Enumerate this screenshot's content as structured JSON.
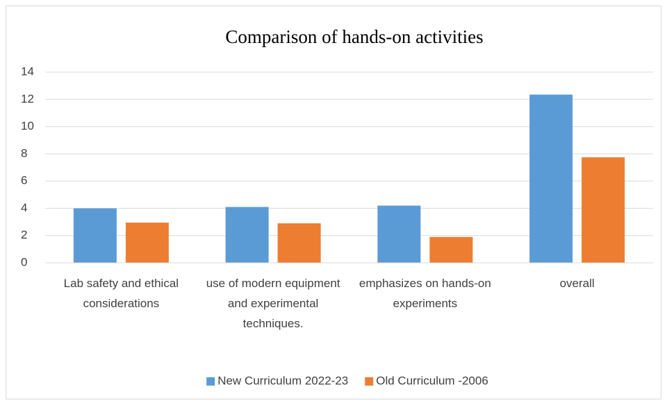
{
  "chart_data": {
    "type": "bar",
    "title": "Comparison of hands-on activities",
    "categories": [
      "Lab safety and ethical considerations",
      "use of modern equipment and experimental techniques.",
      "emphasizes on hands-on experiments",
      "overall"
    ],
    "series": [
      {
        "name": "New Curriculum 2022-23",
        "color": "#5b9bd5",
        "values": [
          4.0,
          4.1,
          4.2,
          12.35
        ]
      },
      {
        "name": "Old Curriculum -2006",
        "color": "#ed7d31",
        "values": [
          2.95,
          2.9,
          1.9,
          7.75
        ]
      }
    ],
    "ylim": [
      0,
      14
    ],
    "yticks": [
      0,
      2,
      4,
      6,
      8,
      10,
      12,
      14
    ],
    "grid": true,
    "legend": "bottom"
  }
}
